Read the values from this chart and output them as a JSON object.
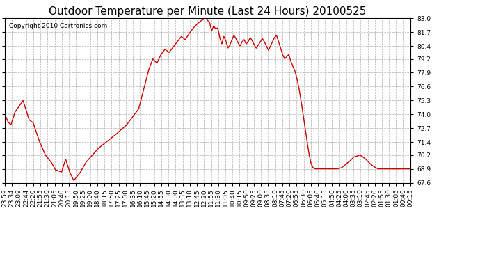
{
  "title": "Outdoor Temperature per Minute (Last 24 Hours) 20100525",
  "copyright": "Copyright 2010 Cartronics.com",
  "line_color": "#cc0000",
  "bg_color": "#ffffff",
  "plot_bg_color": "#ffffff",
  "grid_color": "#b0b0b0",
  "ylim": [
    67.6,
    83.0
  ],
  "yticks": [
    67.6,
    68.9,
    70.2,
    71.4,
    72.7,
    74.0,
    75.3,
    76.6,
    77.9,
    79.2,
    80.4,
    81.7,
    83.0
  ],
  "xtick_labels": [
    "23:59",
    "23:34",
    "23:09",
    "22:44",
    "22:20",
    "21:55",
    "21:30",
    "21:05",
    "20:40",
    "20:15",
    "19:50",
    "19:25",
    "19:00",
    "18:40",
    "18:15",
    "17:50",
    "17:25",
    "17:00",
    "16:35",
    "16:10",
    "15:45",
    "15:20",
    "14:55",
    "14:30",
    "14:00",
    "13:35",
    "13:10",
    "12:45",
    "12:20",
    "11:55",
    "11:30",
    "11:05",
    "10:40",
    "10:15",
    "09:50",
    "09:25",
    "09:00",
    "08:35",
    "08:10",
    "07:45",
    "07:20",
    "06:55",
    "06:30",
    "06:05",
    "05:40",
    "05:15",
    "04:50",
    "04:25",
    "04:00",
    "03:35",
    "03:10",
    "02:45",
    "02:20",
    "01:55",
    "01:30",
    "01:05",
    "00:40",
    "00:15"
  ],
  "title_fontsize": 11,
  "copyright_fontsize": 6.5,
  "tick_fontsize": 6.5,
  "line_width": 1.0,
  "keypoints": [
    [
      0.0,
      74.0
    ],
    [
      0.008,
      73.3
    ],
    [
      0.015,
      73.0
    ],
    [
      0.025,
      74.2
    ],
    [
      0.045,
      75.3
    ],
    [
      0.06,
      73.5
    ],
    [
      0.07,
      73.2
    ],
    [
      0.085,
      71.5
    ],
    [
      0.1,
      70.2
    ],
    [
      0.115,
      69.5
    ],
    [
      0.125,
      68.8
    ],
    [
      0.14,
      68.6
    ],
    [
      0.15,
      69.8
    ],
    [
      0.16,
      68.6
    ],
    [
      0.17,
      67.8
    ],
    [
      0.185,
      68.5
    ],
    [
      0.2,
      69.5
    ],
    [
      0.23,
      70.8
    ],
    [
      0.27,
      72.0
    ],
    [
      0.3,
      73.0
    ],
    [
      0.33,
      74.5
    ],
    [
      0.355,
      78.2
    ],
    [
      0.365,
      79.2
    ],
    [
      0.375,
      78.8
    ],
    [
      0.385,
      79.6
    ],
    [
      0.395,
      80.1
    ],
    [
      0.405,
      79.8
    ],
    [
      0.415,
      80.3
    ],
    [
      0.425,
      80.8
    ],
    [
      0.435,
      81.3
    ],
    [
      0.445,
      81.0
    ],
    [
      0.455,
      81.6
    ],
    [
      0.465,
      82.1
    ],
    [
      0.475,
      82.5
    ],
    [
      0.485,
      82.8
    ],
    [
      0.495,
      83.0
    ],
    [
      0.505,
      82.6
    ],
    [
      0.51,
      81.8
    ],
    [
      0.515,
      82.3
    ],
    [
      0.52,
      82.0
    ],
    [
      0.525,
      82.1
    ],
    [
      0.53,
      81.2
    ],
    [
      0.535,
      80.6
    ],
    [
      0.54,
      81.3
    ],
    [
      0.545,
      80.9
    ],
    [
      0.55,
      80.2
    ],
    [
      0.555,
      80.5
    ],
    [
      0.56,
      81.0
    ],
    [
      0.565,
      81.4
    ],
    [
      0.57,
      81.1
    ],
    [
      0.575,
      80.7
    ],
    [
      0.58,
      80.4
    ],
    [
      0.585,
      80.8
    ],
    [
      0.59,
      81.0
    ],
    [
      0.595,
      80.6
    ],
    [
      0.6,
      80.8
    ],
    [
      0.605,
      81.2
    ],
    [
      0.61,
      80.9
    ],
    [
      0.615,
      80.5
    ],
    [
      0.62,
      80.2
    ],
    [
      0.625,
      80.5
    ],
    [
      0.63,
      80.8
    ],
    [
      0.635,
      81.1
    ],
    [
      0.64,
      80.8
    ],
    [
      0.645,
      80.4
    ],
    [
      0.65,
      80.0
    ],
    [
      0.655,
      80.4
    ],
    [
      0.66,
      80.8
    ],
    [
      0.665,
      81.2
    ],
    [
      0.67,
      81.4
    ],
    [
      0.675,
      80.8
    ],
    [
      0.68,
      80.2
    ],
    [
      0.685,
      79.6
    ],
    [
      0.69,
      79.2
    ],
    [
      0.695,
      79.4
    ],
    [
      0.7,
      79.6
    ],
    [
      0.705,
      79.0
    ],
    [
      0.71,
      78.5
    ],
    [
      0.715,
      78.1
    ],
    [
      0.72,
      77.4
    ],
    [
      0.725,
      76.5
    ],
    [
      0.73,
      75.4
    ],
    [
      0.735,
      74.1
    ],
    [
      0.74,
      72.8
    ],
    [
      0.745,
      71.5
    ],
    [
      0.75,
      70.3
    ],
    [
      0.755,
      69.4
    ],
    [
      0.76,
      69.0
    ],
    [
      0.765,
      68.9
    ],
    [
      0.775,
      68.9
    ],
    [
      0.8,
      68.9
    ],
    [
      0.82,
      68.9
    ],
    [
      0.83,
      69.0
    ],
    [
      0.84,
      69.3
    ],
    [
      0.85,
      69.6
    ],
    [
      0.86,
      70.0
    ],
    [
      0.87,
      70.1
    ],
    [
      0.875,
      70.2
    ],
    [
      0.88,
      70.1
    ],
    [
      0.89,
      69.8
    ],
    [
      0.9,
      69.4
    ],
    [
      0.91,
      69.1
    ],
    [
      0.92,
      68.9
    ],
    [
      0.94,
      68.9
    ],
    [
      0.96,
      68.9
    ],
    [
      0.98,
      68.9
    ],
    [
      1.0,
      68.9
    ]
  ]
}
